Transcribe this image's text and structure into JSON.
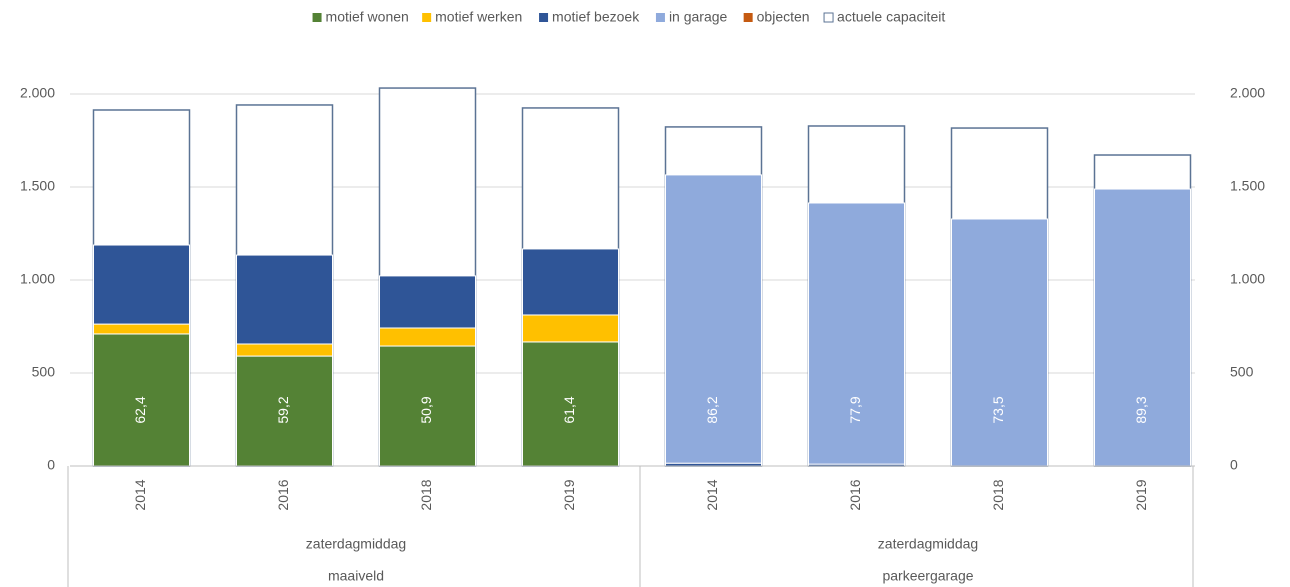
{
  "chart_data": {
    "type": "bar",
    "stacked": true,
    "categories": [
      "2014",
      "2016",
      "2018",
      "2019",
      "2014",
      "2016",
      "2018",
      "2019"
    ],
    "category_levels": [
      [
        "zaterdagmiddag",
        "zaterdagmiddag"
      ],
      [
        "maaiveld",
        "parkeergarage"
      ]
    ],
    "series": [
      {
        "name": "motief wonen",
        "color": "#548235",
        "values": [
          710,
          591,
          645,
          667,
          0,
          0,
          0,
          0
        ]
      },
      {
        "name": "motief werken",
        "color": "#ffc000",
        "values": [
          53,
          65,
          97,
          145,
          0,
          0,
          0,
          0
        ]
      },
      {
        "name": "motief bezoek",
        "color": "#2f5597",
        "values": [
          425,
          478,
          280,
          355,
          15,
          10,
          0,
          0
        ]
      },
      {
        "name": "in garage",
        "color": "#8faadc",
        "values": [
          0,
          0,
          0,
          0,
          1550,
          1404,
          1328,
          1489
        ]
      },
      {
        "name": "objecten",
        "color": "#c55a11",
        "values": [
          0,
          0,
          0,
          0,
          0,
          0,
          0,
          0
        ]
      },
      {
        "name": "actuele capaciteit",
        "color": "#ffffff",
        "outline": "#5b7394",
        "axis": "y2",
        "values": [
          1914,
          1941,
          2032,
          1925,
          1823,
          1828,
          1817,
          1672
        ]
      }
    ],
    "occupancy": {
      "values": [
        62.4,
        59.2,
        50.9,
        61.4,
        86.2,
        77.9,
        73.5,
        89.3
      ],
      "value_labels": [
        "62,4",
        "59,2",
        "50,9",
        "61,4",
        "86,2",
        "77,9",
        "73,5",
        "89,3"
      ]
    },
    "ylim": [
      0,
      2000
    ],
    "yticks": [
      0,
      500,
      {
        "value": 1000,
        "label": "1.000"
      },
      {
        "value": 1500,
        "label": "1.500"
      },
      {
        "value": 2000,
        "label": "2.000"
      }
    ],
    "y2lim": [
      0,
      2000
    ],
    "y2ticks": [
      0,
      500,
      {
        "value": 1000,
        "label": "1.000"
      },
      {
        "value": 1500,
        "label": "1.500"
      },
      {
        "value": 2000,
        "label": "2.000"
      }
    ],
    "grid": true,
    "legend": "top"
  }
}
